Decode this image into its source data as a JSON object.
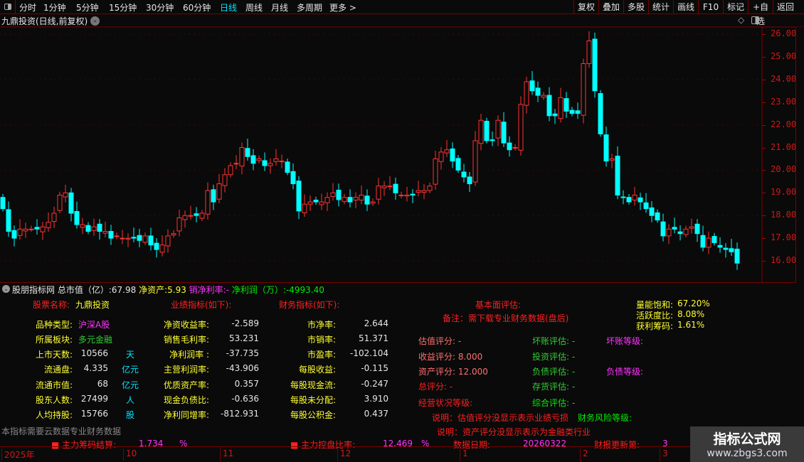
{
  "toolbar": {
    "periods": [
      "分时",
      "1分钟",
      "5分钟",
      "15分钟",
      "30分钟",
      "60分钟",
      "日线",
      "周线",
      "月线",
      "多周期",
      "更多 >"
    ],
    "active": "日线",
    "actions": [
      "复权",
      "叠加",
      "多股",
      "统计",
      "画线",
      "F10",
      "标记",
      "+自选",
      "返回"
    ]
  },
  "chart_title": "九鼎投资(日线,前复权)",
  "colors": {
    "up": "#ff3333",
    "down": "#00ffff",
    "axis": "#d01818",
    "grid": "#7a0000"
  },
  "chart_data": {
    "type": "candlestick",
    "ylim": [
      15.7,
      26.3
    ],
    "yticks": [
      "26.00",
      "25.00",
      "24.00",
      "23.00",
      "22.00",
      "21.00",
      "20.00",
      "19.00",
      "18.00",
      "17.00",
      "16.00"
    ],
    "closes": [
      18.3,
      17.3,
      17.0,
      17.4,
      17.4,
      17.4,
      17.4,
      17.5,
      17.7,
      18.1,
      18.9,
      19.0,
      18.1,
      17.6,
      17.6,
      17.3,
      17.5,
      17.3,
      17.3,
      17.0,
      17.1,
      17.0,
      17.0,
      17.0,
      16.9,
      17.1,
      16.7,
      16.5,
      16.7,
      17.1,
      17.2,
      17.9,
      18.0,
      18.0,
      18.0,
      18.1,
      19.1,
      18.6,
      19.4,
      19.8,
      20.2,
      20.3,
      21.0,
      20.6,
      20.3,
      20.5,
      20.2,
      20.3,
      20.5,
      20.4,
      19.9,
      19.4,
      18.2,
      18.5,
      18.6,
      18.6,
      18.6,
      18.8,
      19.0,
      18.7,
      18.8,
      18.6,
      18.8,
      18.9,
      18.5,
      18.6,
      19.3,
      19.3,
      19.3,
      19.0,
      18.9,
      18.9,
      18.9,
      19.1,
      19.1,
      19.3,
      20.5,
      20.8,
      20.9,
      20.4,
      20.0,
      19.7,
      19.4,
      21.3,
      22.2,
      21.3,
      21.3,
      22.2,
      21.2,
      20.9,
      21.0,
      22.9,
      23.9,
      23.5,
      23.3,
      23.3,
      22.4,
      22.4,
      23.2,
      22.6,
      22.5,
      22.5,
      24.7,
      25.7,
      23.5,
      21.6,
      20.4,
      20.5,
      18.9,
      18.8,
      18.6,
      18.9,
      18.6,
      18.3,
      18.0,
      17.8,
      17.1,
      17.4,
      17.4,
      17.2,
      17.4,
      17.5,
      17.2,
      16.6,
      17.0,
      16.8,
      16.6,
      16.5,
      16.4,
      15.9
    ],
    "months": [
      "2025年",
      "10",
      "11",
      "12",
      "1",
      "2",
      "3"
    ]
  },
  "panel": {
    "header": {
      "name": "股朋指标网",
      "mcap_label": "总市值（亿）:",
      "mcap": "67.98",
      "na_label": "净资产:",
      "na": "5.93",
      "nm_label": "销净利率:",
      "nm": "-",
      "np_label": "净利润（万）:",
      "np": "-4993.40"
    },
    "stock_name_label": "股票名称:",
    "stock_name": "九鼎投资",
    "perf_title": "业绩指标(如下):",
    "fin_title": "财务指标(如下):",
    "left": [
      {
        "k": "品种类型:",
        "v": "沪深A股",
        "u": ""
      },
      {
        "k": "所属板块:",
        "v": "多元金融",
        "u": ""
      },
      {
        "k": "上市天数:",
        "v": "10566",
        "u": "天"
      },
      {
        "k": "流通盘:",
        "v": "4.335",
        "u": "亿元"
      },
      {
        "k": "流通市值:",
        "v": "68",
        "u": "亿元"
      },
      {
        "k": "股东人数:",
        "v": "27499",
        "u": "人"
      },
      {
        "k": "人均持股:",
        "v": "15766",
        "u": "股"
      }
    ],
    "perf": [
      {
        "k": "净资收益率:",
        "v": "-2.589"
      },
      {
        "k": "销售毛利率:",
        "v": "53.231"
      },
      {
        "k": "净利润率 :",
        "v": "-37.735"
      },
      {
        "k": "主营利润率:",
        "v": "-43.906"
      },
      {
        "k": "优质资产率:",
        "v": "0.357"
      },
      {
        "k": "现金负债比:",
        "v": "-0.636"
      },
      {
        "k": "净利同增率:",
        "v": "-812.931"
      }
    ],
    "fin": [
      {
        "k": "市净率:",
        "v": "2.644"
      },
      {
        "k": "市销率:",
        "v": "51.371"
      },
      {
        "k": "市盈率:",
        "v": "-102.104"
      },
      {
        "k": "每股收益:",
        "v": "-0.115"
      },
      {
        "k": "每股现金流:",
        "v": "-0.247"
      },
      {
        "k": "每股未分配:",
        "v": "3.910"
      },
      {
        "k": "每股公积金:",
        "v": "0.437"
      }
    ],
    "fund_title": "基本面评估:",
    "fund_note": "备注：需下载专业财务数据(盘后)",
    "ratios": [
      {
        "k": "量能饱和:",
        "v": "67.20%"
      },
      {
        "k": "活跃度比:",
        "v": "8.08%"
      },
      {
        "k": "获利筹码:",
        "v": "1.61%"
      }
    ],
    "scores": [
      "估值评分: -",
      "收益评分: 8.000",
      "资产评分: 12.000",
      "总评分: -",
      "经营状况等级:"
    ],
    "evals": [
      "坏账评估: -",
      "投资评估: -",
      "负债评估: -",
      "存货评估: -",
      "综合评估: -"
    ],
    "grades": [
      "坏账等级:",
      "负债等级:"
    ],
    "note1": "说明：估值评分没显示表示业绩亏损",
    "risk": "财务风险等级:",
    "note2": "说明：资产评分没显示表示为金融类行业",
    "bottom": {
      "cloud": "本指标需要云数据专业财务数据",
      "chip_label": "主力筹码结算:",
      "chip": "1.734",
      "pct": "%",
      "ctrl_label": "主力控盘比率:",
      "ctrl": "12.469",
      "pct2": "%",
      "date_label": "数据日期:",
      "date": "20260322",
      "update_label": "财报更新第:",
      "update": "3"
    }
  },
  "watermark": {
    "title": "指标公式网",
    "url": "www.zbgs3.com"
  }
}
